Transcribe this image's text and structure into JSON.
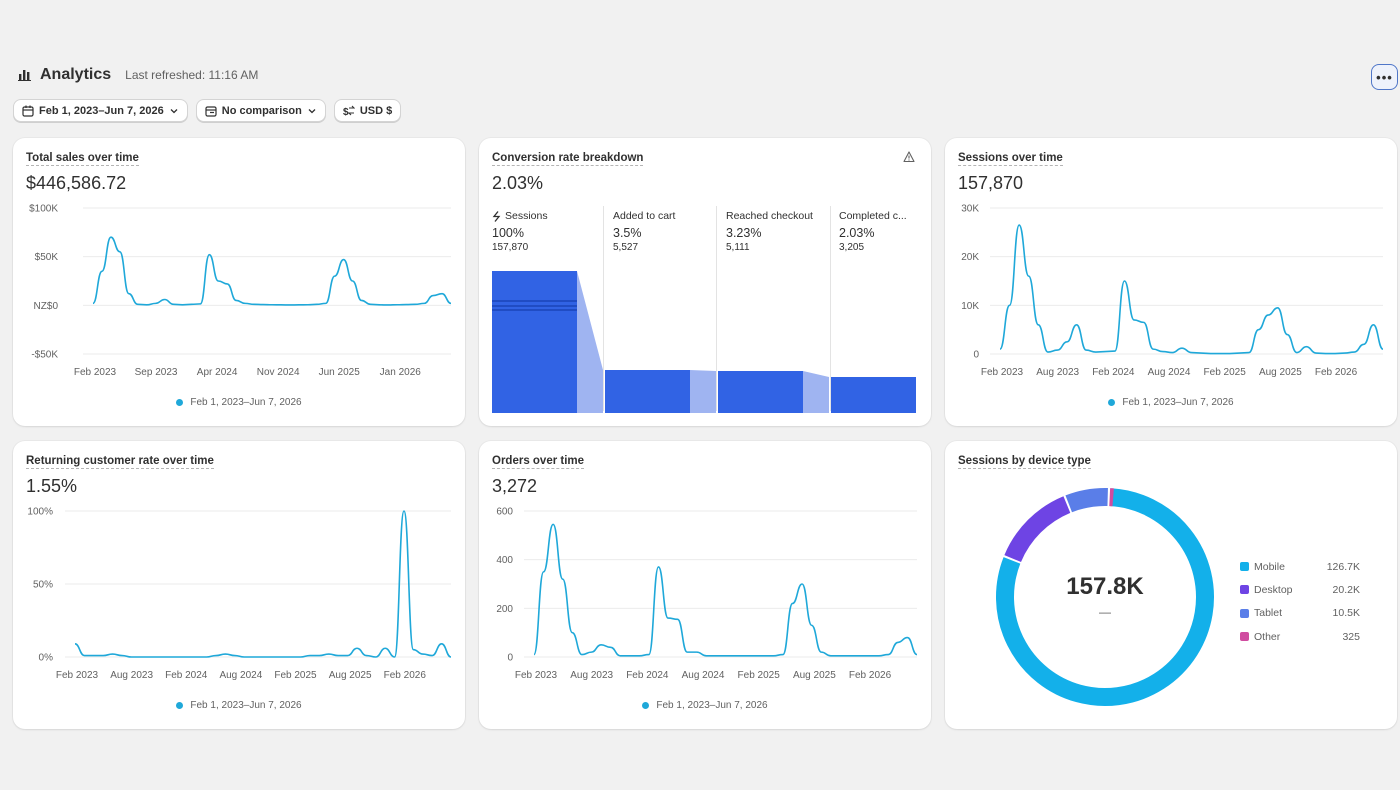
{
  "header": {
    "title": "Analytics",
    "last_refreshed": "Last refreshed: 11:16 AM",
    "more_label": "•••"
  },
  "filters": {
    "date_range": "Feb 1, 2023–Jun 7, 2026",
    "comparison": "No comparison",
    "currency": "USD $"
  },
  "colors": {
    "line": "#1fa8d9",
    "funnel": "#3163e4",
    "funnel_connector": "#9fb4f1",
    "mobile": "#13b0ea",
    "desktop": "#6e44e4",
    "tablet": "#5a7ee8",
    "other": "#d04ca0"
  },
  "cards": {
    "total_sales": {
      "title": "Total sales over time",
      "value": "$446,586.72",
      "legend": "Feb 1, 2023–Jun 7, 2026"
    },
    "conversion": {
      "title": "Conversion rate breakdown",
      "value": "2.03%",
      "warning_icon": "warning-triangle-icon",
      "stages": [
        {
          "label": "Sessions",
          "pct": "100%",
          "count": "157,870"
        },
        {
          "label": "Added to cart",
          "pct": "3.5%",
          "count": "5,527"
        },
        {
          "label": "Reached checkout",
          "pct": "3.23%",
          "count": "5,111"
        },
        {
          "label": "Completed c...",
          "pct": "2.03%",
          "count": "3,205"
        }
      ]
    },
    "sessions": {
      "title": "Sessions over time",
      "value": "157,870",
      "legend": "Feb 1, 2023–Jun 7, 2026"
    },
    "returning": {
      "title": "Returning customer rate over time",
      "value": "1.55%",
      "legend": "Feb 1, 2023–Jun 7, 2026"
    },
    "orders": {
      "title": "Orders over time",
      "value": "3,272",
      "legend": "Feb 1, 2023–Jun 7, 2026"
    },
    "devices": {
      "title": "Sessions by device type",
      "center_value": "157.8K",
      "center_sub": "—",
      "items": [
        {
          "name": "Mobile",
          "value": "126.7K"
        },
        {
          "name": "Desktop",
          "value": "20.2K"
        },
        {
          "name": "Tablet",
          "value": "10.5K"
        },
        {
          "name": "Other",
          "value": "325"
        }
      ]
    }
  },
  "chart_data": [
    {
      "type": "line",
      "title": "Total sales over time",
      "y_ticks": [
        "$100K",
        "$50K",
        "NZ$0",
        "-$50K"
      ],
      "x_ticks": [
        "Feb 2023",
        "Sep 2023",
        "Apr 2024",
        "Nov 2024",
        "Jun 2025",
        "Jan 2026"
      ],
      "ylim": [
        -50000,
        100000
      ],
      "series": [
        {
          "name": "Feb 1, 2023–Jun 7, 2026",
          "x": [
            "2023-02",
            "2023-03",
            "2023-04",
            "2023-05",
            "2023-06",
            "2023-07",
            "2023-08",
            "2023-09",
            "2023-10",
            "2023-11",
            "2023-12",
            "2024-01",
            "2024-02",
            "2024-03",
            "2024-04",
            "2024-05",
            "2024-06",
            "2024-07",
            "2024-08",
            "2024-09",
            "2024-10",
            "2024-11",
            "2024-12",
            "2025-01",
            "2025-02",
            "2025-03",
            "2025-04",
            "2025-05",
            "2025-06",
            "2025-07",
            "2025-08",
            "2025-09",
            "2025-10",
            "2025-11",
            "2025-12",
            "2026-01",
            "2026-02",
            "2026-03",
            "2026-04",
            "2026-05",
            "2026-06"
          ],
          "values": [
            2000,
            35000,
            70000,
            55000,
            12000,
            1000,
            500,
            2000,
            6000,
            1000,
            500,
            1000,
            1500,
            52000,
            25000,
            22000,
            5000,
            2000,
            1000,
            800,
            600,
            500,
            400,
            500,
            600,
            1000,
            2000,
            30000,
            47000,
            25000,
            5000,
            1000,
            500,
            400,
            600,
            800,
            1000,
            2000,
            10000,
            12000,
            2000
          ]
        }
      ]
    },
    {
      "type": "bar",
      "title": "Conversion rate breakdown",
      "categories": [
        "Sessions",
        "Added to cart",
        "Reached checkout",
        "Completed c..."
      ],
      "values": [
        100,
        3.5,
        3.23,
        2.03
      ]
    },
    {
      "type": "line",
      "title": "Sessions over time",
      "y_ticks": [
        "30K",
        "20K",
        "10K",
        "0"
      ],
      "x_ticks": [
        "Feb 2023",
        "Aug 2023",
        "Feb 2024",
        "Aug 2024",
        "Feb 2025",
        "Aug 2025",
        "Feb 2026"
      ],
      "ylim": [
        0,
        30000
      ],
      "series": [
        {
          "name": "Feb 1, 2023–Jun 7, 2026",
          "x": [
            "2023-02",
            "2023-03",
            "2023-04",
            "2023-05",
            "2023-06",
            "2023-07",
            "2023-08",
            "2023-09",
            "2023-10",
            "2023-11",
            "2023-12",
            "2024-01",
            "2024-02",
            "2024-03",
            "2024-04",
            "2024-05",
            "2024-06",
            "2024-07",
            "2024-08",
            "2024-09",
            "2024-10",
            "2024-11",
            "2024-12",
            "2025-01",
            "2025-02",
            "2025-03",
            "2025-04",
            "2025-05",
            "2025-06",
            "2025-07",
            "2025-08",
            "2025-09",
            "2025-10",
            "2025-11",
            "2025-12",
            "2026-01",
            "2026-02",
            "2026-03",
            "2026-04",
            "2026-05",
            "2026-06"
          ],
          "values": [
            1000,
            10000,
            26500,
            16000,
            6000,
            400,
            800,
            2500,
            6000,
            800,
            400,
            500,
            600,
            15000,
            7000,
            6500,
            1000,
            500,
            300,
            1200,
            300,
            200,
            100,
            100,
            100,
            200,
            300,
            5000,
            8000,
            9500,
            4000,
            300,
            1500,
            200,
            100,
            100,
            200,
            400,
            2000,
            6000,
            1000
          ]
        }
      ]
    },
    {
      "type": "line",
      "title": "Returning customer rate over time",
      "y_ticks": [
        "100%",
        "50%",
        "0%"
      ],
      "x_ticks": [
        "Feb 2023",
        "Aug 2023",
        "Feb 2024",
        "Aug 2024",
        "Feb 2025",
        "Aug 2025",
        "Feb 2026"
      ],
      "ylim": [
        0,
        100
      ],
      "series": [
        {
          "name": "Feb 1, 2023–Jun 7, 2026",
          "x": [
            "2023-02",
            "2023-03",
            "2023-04",
            "2023-05",
            "2023-06",
            "2023-07",
            "2023-08",
            "2023-09",
            "2023-10",
            "2023-11",
            "2023-12",
            "2024-01",
            "2024-02",
            "2024-03",
            "2024-04",
            "2024-05",
            "2024-06",
            "2024-07",
            "2024-08",
            "2024-09",
            "2024-10",
            "2024-11",
            "2024-12",
            "2025-01",
            "2025-02",
            "2025-03",
            "2025-04",
            "2025-05",
            "2025-06",
            "2025-07",
            "2025-08",
            "2025-09",
            "2025-10",
            "2025-11",
            "2025-12",
            "2026-01",
            "2026-02",
            "2026-03",
            "2026-04",
            "2026-05",
            "2026-06"
          ],
          "values": [
            9,
            1,
            1,
            1,
            2,
            1,
            0,
            0,
            0,
            0,
            0,
            0,
            0,
            0,
            0,
            1,
            2,
            1,
            0,
            0,
            0,
            0,
            0,
            0,
            0,
            1,
            1,
            2,
            1,
            1,
            6,
            1,
            0,
            6,
            0,
            100,
            5,
            2,
            1,
            9,
            0
          ]
        }
      ]
    },
    {
      "type": "line",
      "title": "Orders over time",
      "y_ticks": [
        "600",
        "400",
        "200",
        "0"
      ],
      "x_ticks": [
        "Feb 2023",
        "Aug 2023",
        "Feb 2024",
        "Aug 2024",
        "Feb 2025",
        "Aug 2025",
        "Feb 2026"
      ],
      "ylim": [
        0,
        600
      ],
      "series": [
        {
          "name": "Feb 1, 2023–Jun 7, 2026",
          "x": [
            "2023-02",
            "2023-03",
            "2023-04",
            "2023-05",
            "2023-06",
            "2023-07",
            "2023-08",
            "2023-09",
            "2023-10",
            "2023-11",
            "2023-12",
            "2024-01",
            "2024-02",
            "2024-03",
            "2024-04",
            "2024-05",
            "2024-06",
            "2024-07",
            "2024-08",
            "2024-09",
            "2024-10",
            "2024-11",
            "2024-12",
            "2025-01",
            "2025-02",
            "2025-03",
            "2025-04",
            "2025-05",
            "2025-06",
            "2025-07",
            "2025-08",
            "2025-09",
            "2025-10",
            "2025-11",
            "2025-12",
            "2026-01",
            "2026-02",
            "2026-03",
            "2026-04",
            "2026-05",
            "2026-06"
          ],
          "values": [
            10,
            350,
            545,
            320,
            100,
            10,
            20,
            50,
            40,
            5,
            5,
            5,
            10,
            370,
            160,
            155,
            20,
            20,
            5,
            5,
            5,
            5,
            5,
            5,
            5,
            5,
            10,
            220,
            300,
            130,
            20,
            5,
            5,
            5,
            5,
            5,
            5,
            10,
            60,
            80,
            10
          ]
        }
      ]
    },
    {
      "type": "pie",
      "title": "Sessions by device type",
      "categories": [
        "Mobile",
        "Desktop",
        "Tablet",
        "Other"
      ],
      "values": [
        126700,
        20200,
        10500,
        325
      ]
    }
  ]
}
